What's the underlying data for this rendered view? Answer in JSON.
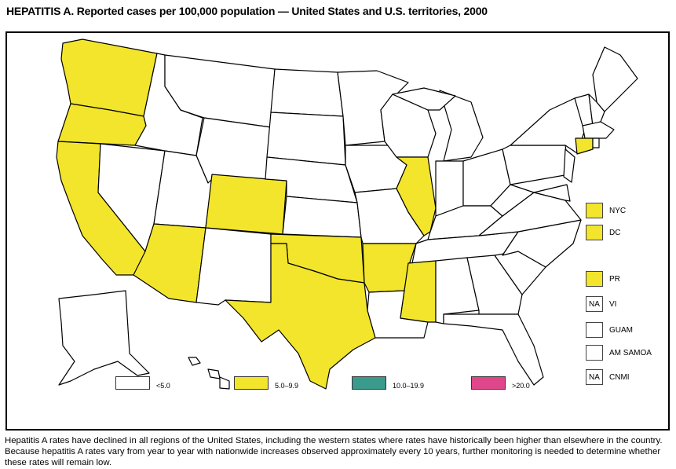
{
  "title": "HEPATITIS A. Reported cases per 100,000 population — United States and U.S. territories, 2000",
  "colors": {
    "<5.0": "#ffffff",
    "5.0–9.9": "#f2e52b",
    "10.0–19.9": "#3a9a8c",
    ">20.0": "#e0468a"
  },
  "legend": [
    {
      "label": "<5.0",
      "color": "#ffffff"
    },
    {
      "label": "5.0–9.9",
      "color": "#f2e52b"
    },
    {
      "label": "10.0–19.9",
      "color": "#3a9a8c"
    },
    {
      "label": ">20.0",
      "color": "#e0468a"
    }
  ],
  "states_5_to_9_9": [
    "WA",
    "OR",
    "CA",
    "AZ",
    "CO",
    "TX",
    "OK",
    "AR",
    "IL",
    "MS",
    "CT"
  ],
  "territories": [
    {
      "label": "NYC",
      "category": "5.0–9.9",
      "box_text": ""
    },
    {
      "label": "DC",
      "category": "5.0–9.9",
      "box_text": ""
    },
    {
      "label": "PR",
      "category": "5.0–9.9",
      "box_text": ""
    },
    {
      "label": "VI",
      "category": "NA",
      "box_text": "NA"
    },
    {
      "label": "GUAM",
      "category": "<5.0",
      "box_text": ""
    },
    {
      "label": "AM SAMOA",
      "category": "<5.0",
      "box_text": ""
    },
    {
      "label": "CNMI",
      "category": "NA",
      "box_text": "NA"
    }
  ],
  "footnote": "Hepatitis A rates have declined in all regions of the United States, including the western states where rates have historically been higher than elsewhere in the country. Because hepatitis A rates vary from year to year with nationwide increases observed approximately every 10 years, further monitoring is needed to determine whether these rates will remain low."
}
